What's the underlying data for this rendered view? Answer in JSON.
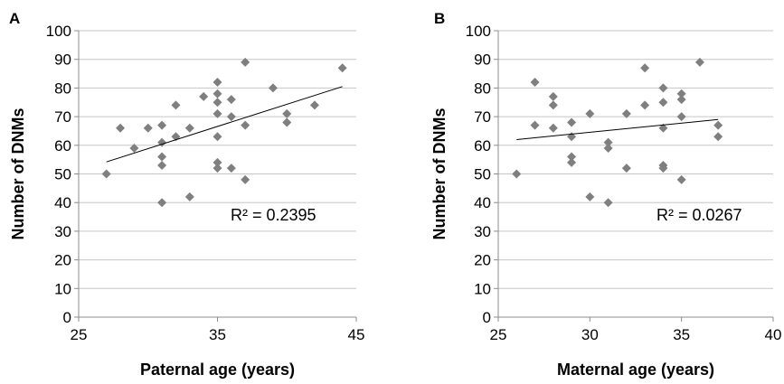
{
  "chart_data": [
    {
      "panel": "A",
      "type": "scatter",
      "xlabel": "Paternal age (years)",
      "ylabel": "Number of DNMs",
      "xlim": [
        25,
        45
      ],
      "ylim": [
        0,
        100
      ],
      "xticks": [
        25,
        35,
        45
      ],
      "yticks": [
        0,
        10,
        20,
        30,
        40,
        50,
        60,
        70,
        80,
        90,
        100
      ],
      "grid": "horizontal",
      "marker_color": "#7f7f7f",
      "r2_label": "R² = 0.2395",
      "trendline": [
        [
          27,
          54.2
        ],
        [
          44,
          80.5
        ]
      ],
      "points": [
        [
          27,
          50
        ],
        [
          28,
          66
        ],
        [
          29,
          59
        ],
        [
          30,
          66
        ],
        [
          31,
          61
        ],
        [
          31,
          67
        ],
        [
          31,
          56
        ],
        [
          31,
          53
        ],
        [
          31,
          40
        ],
        [
          32,
          63
        ],
        [
          32,
          74
        ],
        [
          33,
          66
        ],
        [
          33,
          42
        ],
        [
          34,
          77
        ],
        [
          35,
          82
        ],
        [
          35,
          78
        ],
        [
          35,
          75
        ],
        [
          35,
          71
        ],
        [
          35,
          63
        ],
        [
          35,
          54
        ],
        [
          35,
          52
        ],
        [
          36,
          76
        ],
        [
          36,
          70
        ],
        [
          36,
          52
        ],
        [
          37,
          89
        ],
        [
          37,
          67
        ],
        [
          37,
          48
        ],
        [
          39,
          80
        ],
        [
          40,
          71
        ],
        [
          40,
          68
        ],
        [
          42,
          74
        ],
        [
          44,
          87
        ]
      ]
    },
    {
      "panel": "B",
      "type": "scatter",
      "xlabel": "Maternal age (years)",
      "ylabel": "Number of DNMs",
      "xlim": [
        25,
        40
      ],
      "ylim": [
        0,
        100
      ],
      "xticks": [
        25,
        30,
        35,
        40
      ],
      "yticks": [
        0,
        10,
        20,
        30,
        40,
        50,
        60,
        70,
        80,
        90,
        100
      ],
      "grid": "horizontal",
      "marker_color": "#7f7f7f",
      "r2_label": "R² = 0.0267",
      "trendline": [
        [
          26,
          62
        ],
        [
          37,
          69
        ]
      ],
      "points": [
        [
          26,
          50
        ],
        [
          27,
          82
        ],
        [
          27,
          67
        ],
        [
          28,
          77
        ],
        [
          28,
          74
        ],
        [
          28,
          66
        ],
        [
          29,
          68
        ],
        [
          29,
          63
        ],
        [
          29,
          56
        ],
        [
          29,
          54
        ],
        [
          30,
          71
        ],
        [
          30,
          42
        ],
        [
          31,
          61
        ],
        [
          31,
          59
        ],
        [
          31,
          40
        ],
        [
          32,
          71
        ],
        [
          32,
          52
        ],
        [
          33,
          87
        ],
        [
          33,
          74
        ],
        [
          34,
          80
        ],
        [
          34,
          75
        ],
        [
          34,
          66
        ],
        [
          34,
          53
        ],
        [
          34,
          52
        ],
        [
          35,
          78
        ],
        [
          35,
          76
        ],
        [
          35,
          70
        ],
        [
          35,
          48
        ],
        [
          36,
          89
        ],
        [
          37,
          67
        ],
        [
          37,
          63
        ]
      ]
    }
  ]
}
